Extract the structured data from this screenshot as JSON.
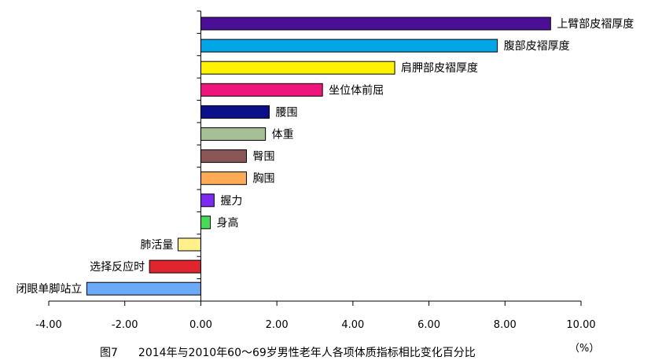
{
  "caption": {
    "figure": "图7",
    "title": "2014年与2010年60～69岁男性老年人各项体质指标相比变化百分比"
  },
  "unit": "（%）",
  "chart_data": {
    "type": "bar",
    "orientation": "horizontal",
    "title": "2014年与2010年60～69岁男性老年人各项体质指标相比变化百分比",
    "xlabel": "（%）",
    "ylabel": "",
    "xlim": [
      -4,
      10
    ],
    "x_ticks": [
      "-4.00",
      "-2.00",
      "0.00",
      "2.00",
      "4.00",
      "6.00",
      "8.00",
      "10.00"
    ],
    "grid": false,
    "legend": "none",
    "categories": [
      "上臂部皮褶厚度",
      "腹部皮褶厚度",
      "肩胛部皮褶厚度",
      "坐位体前屈",
      "腰围",
      "体重",
      "臀围",
      "胸围",
      "握力",
      "身高",
      "肺活量",
      "选择反应时",
      "闭眼单脚站立"
    ],
    "values": [
      9.2,
      7.8,
      5.1,
      3.2,
      1.8,
      1.7,
      1.2,
      1.2,
      0.35,
      0.25,
      -0.6,
      -1.35,
      -3.0
    ],
    "colors": [
      "#4b0f96",
      "#00a6e6",
      "#fff200",
      "#f0157d",
      "#0c0f8a",
      "#a7bf94",
      "#8b5656",
      "#ffaa55",
      "#7d2bf0",
      "#44dd55",
      "#fff08a",
      "#e0252e",
      "#6aaaf8"
    ]
  }
}
